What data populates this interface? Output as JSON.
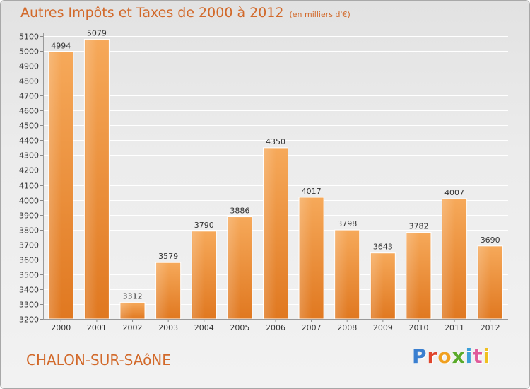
{
  "chart_data": {
    "type": "bar",
    "title": "Autres Impôts et Taxes de 2000 à 2012",
    "subtitle": "(en milliers d'€)",
    "categories": [
      "2000",
      "2001",
      "2002",
      "2003",
      "2004",
      "2005",
      "2006",
      "2007",
      "2008",
      "2009",
      "2010",
      "2011",
      "2012"
    ],
    "values": [
      4994,
      5079,
      3312,
      3579,
      3790,
      3886,
      4350,
      4017,
      3798,
      3643,
      3782,
      4007,
      3690
    ],
    "ylim": [
      3200,
      5100
    ],
    "ytick_step": 100,
    "grid": true,
    "xlabel": "",
    "ylabel": "",
    "bar_color": "#f08a2c"
  },
  "footer": {
    "city": "CHALON-SUR-SAôNE",
    "logo": "Proxiti",
    "logo_colors": [
      "#3a7fd0",
      "#e0452c",
      "#f0a020",
      "#5aaa2a",
      "#3a9fd8",
      "#e05a9a",
      "#f0c020"
    ]
  }
}
